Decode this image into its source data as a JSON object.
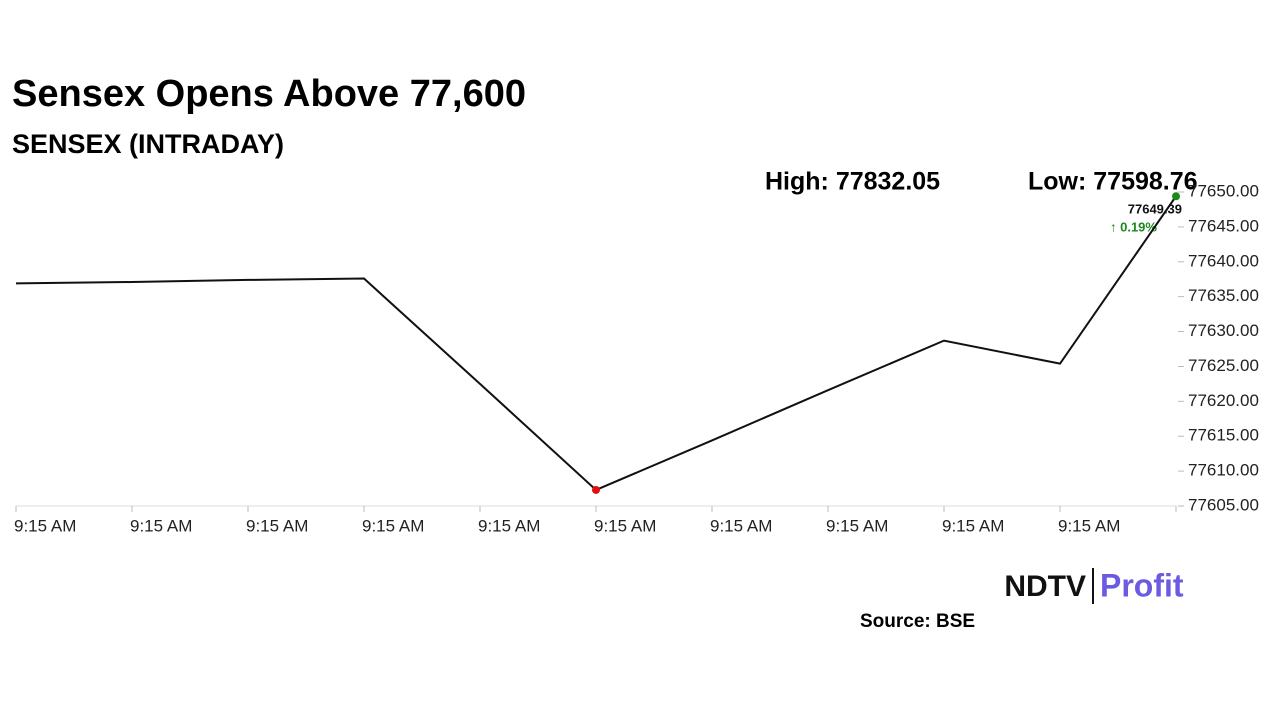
{
  "chart_data": {
    "type": "line",
    "title": "Sensex Opens Above 77,600",
    "subtitle": "SENSEX (INTRADAY)",
    "high_label": "High: 77832.05",
    "low_label": "Low: 77598.76",
    "change_label": "↑ 0.19%",
    "source": "Source: BSE",
    "logo": [
      "NDTV",
      "Profit"
    ],
    "categories": [
      "9:15 AM",
      "9:15 AM",
      "9:15 AM",
      "9:15 AM",
      "9:15 AM",
      "9:15 AM",
      "9:15 AM",
      "9:15 AM",
      "9:15 AM",
      "9:15 AM",
      null
    ],
    "series": [
      {
        "name": "SENSEX",
        "color": "#111111",
        "values": [
          77636.9,
          77637.1,
          77637.4,
          77637.6,
          77622.5,
          77607.3,
          77614.4,
          77621.6,
          77628.7,
          77625.4,
          77649.39
        ]
      }
    ],
    "low_marker_color": "#e01010",
    "last_marker_color": "#1a8a1a",
    "ylim": [
      77605,
      77650
    ],
    "yticks": [
      {
        "value": 77605,
        "label": "77605.00"
      },
      {
        "value": 77610,
        "label": "77610.00"
      },
      {
        "value": 77615,
        "label": "77615.00"
      },
      {
        "value": 77620,
        "label": "77620.00"
      },
      {
        "value": 77625,
        "label": "77625.00"
      },
      {
        "value": 77630,
        "label": "77630.00"
      },
      {
        "value": 77635,
        "label": "77635.00"
      },
      {
        "value": 77640,
        "label": "77640.00"
      },
      {
        "value": 77645,
        "label": "77645.00"
      },
      {
        "value": 77650,
        "label": "77650.00"
      }
    ],
    "grid": false
  }
}
